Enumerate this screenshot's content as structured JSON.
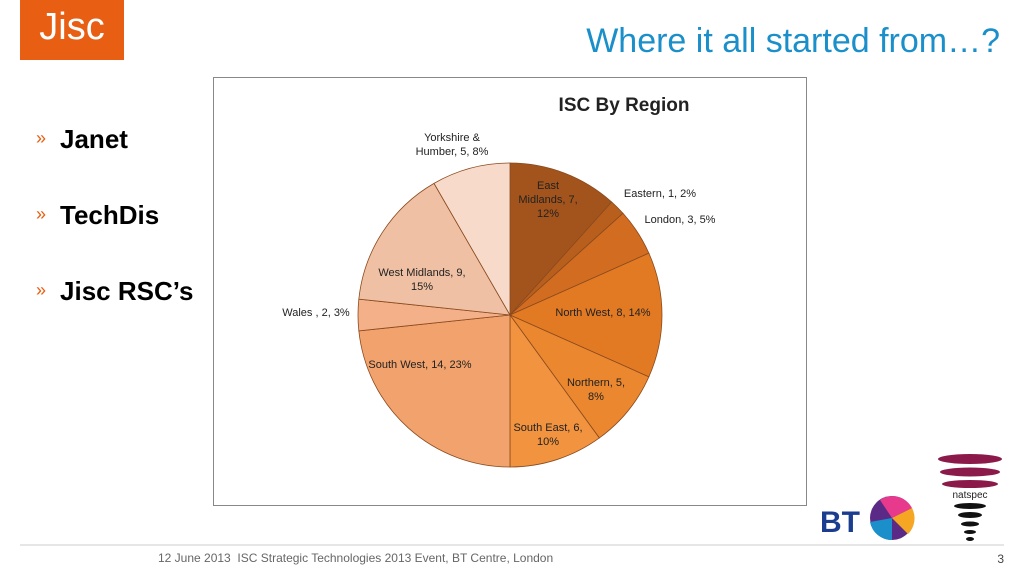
{
  "logo": "Jisc",
  "title": "Where it all started from…?",
  "bullets": [
    "Janet",
    "TechDis",
    "Jisc RSC’s"
  ],
  "footer": {
    "text": "12 June 2013  ISC Strategic Technologies 2013 Event, BT Centre, London",
    "page": "3"
  },
  "partner_logos": [
    "BT",
    "natspec"
  ],
  "chart_data": {
    "type": "pie",
    "title": "ISC By Region",
    "values": [
      7,
      1,
      3,
      8,
      5,
      6,
      14,
      2,
      9,
      5
    ],
    "value_labels": [
      "East Midlands, 7, 12%",
      "Eastern, 1, 2%",
      "London, 3, 5%",
      "North West, 8, 14%",
      "Northern, 5, 8%",
      "South East, 6, 10%",
      "South West, 14, 23%",
      "Wales , 2, 3%",
      "West Midlands, 9, 15%",
      "Yorkshire & Humber, 5, 8%"
    ],
    "colors": [
      "#a3541c",
      "#b95f1e",
      "#d16c20",
      "#e27a24",
      "#ea872f",
      "#f1933f",
      "#f2a26c",
      "#f4b088",
      "#f0c0a4",
      "#f8dacb"
    ]
  }
}
